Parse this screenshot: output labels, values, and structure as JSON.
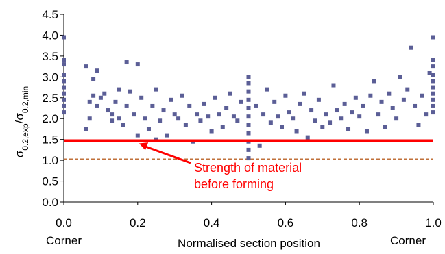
{
  "chart_data": {
    "type": "scatter",
    "xlabel": "Normalised section position",
    "ylabel": "σ0.2,exp/σ0.2,min",
    "ylabel_parts": {
      "sigma": "σ",
      "sub1": "0.2,exp",
      "slash": "/",
      "sub2": "0.2,min"
    },
    "xlim": [
      0.0,
      1.0
    ],
    "ylim": [
      0.0,
      4.5
    ],
    "xticks": [
      "0.0",
      "0.2",
      "0.4",
      "0.6",
      "0.8",
      "1.0"
    ],
    "yticks": [
      "0.0",
      "0.5",
      "1.0",
      "1.5",
      "2.0",
      "2.5",
      "3.0",
      "3.5",
      "4.0",
      "4.5"
    ],
    "corner_labels": {
      "left": "Corner",
      "right": "Corner"
    },
    "grid": false,
    "colors": {
      "points": "#5b5e96",
      "red_line": "#ff0000",
      "dashed_line": "#c0703a"
    },
    "reference_lines": [
      {
        "name": "red-solid",
        "y": 1.47,
        "style": "solid"
      },
      {
        "name": "dashed",
        "y": 1.03,
        "style": "dashed"
      }
    ],
    "annotation": {
      "line1": "Strength of material",
      "line2": "before forming",
      "arrow_to": {
        "x": 0.2,
        "y": 1.47
      }
    },
    "series": [
      {
        "values": [
          [
            0.0,
            2.15
          ],
          [
            0.0,
            2.3
          ],
          [
            0.0,
            2.45
          ],
          [
            0.0,
            2.6
          ],
          [
            0.0,
            2.75
          ],
          [
            0.0,
            2.9
          ],
          [
            0.0,
            3.05
          ],
          [
            0.0,
            3.3
          ],
          [
            0.0,
            3.4
          ],
          [
            0.0,
            3.95
          ],
          [
            0.06,
            3.25
          ],
          [
            0.07,
            2.4
          ],
          [
            0.07,
            2.0
          ],
          [
            0.06,
            1.75
          ],
          [
            0.08,
            2.95
          ],
          [
            0.08,
            2.55
          ],
          [
            0.09,
            3.15
          ],
          [
            0.09,
            2.3
          ],
          [
            0.1,
            2.5
          ],
          [
            0.11,
            2.6
          ],
          [
            0.12,
            2.2
          ],
          [
            0.13,
            1.95
          ],
          [
            0.13,
            2.1
          ],
          [
            0.14,
            2.4
          ],
          [
            0.15,
            2.7
          ],
          [
            0.15,
            2.0
          ],
          [
            0.16,
            1.85
          ],
          [
            0.17,
            3.35
          ],
          [
            0.17,
            2.3
          ],
          [
            0.18,
            2.65
          ],
          [
            0.19,
            2.1
          ],
          [
            0.2,
            3.3
          ],
          [
            0.2,
            1.6
          ],
          [
            0.21,
            2.5
          ],
          [
            0.22,
            2.0
          ],
          [
            0.23,
            1.75
          ],
          [
            0.24,
            2.3
          ],
          [
            0.25,
            1.5
          ],
          [
            0.25,
            2.7
          ],
          [
            0.26,
            1.95
          ],
          [
            0.27,
            2.2
          ],
          [
            0.28,
            1.6
          ],
          [
            0.29,
            2.45
          ],
          [
            0.3,
            2.1
          ],
          [
            0.31,
            2.0
          ],
          [
            0.32,
            2.55
          ],
          [
            0.33,
            1.85
          ],
          [
            0.34,
            2.3
          ],
          [
            0.35,
            1.45
          ],
          [
            0.36,
            2.1
          ],
          [
            0.37,
            1.95
          ],
          [
            0.38,
            2.35
          ],
          [
            0.39,
            2.05
          ],
          [
            0.4,
            1.7
          ],
          [
            0.41,
            2.5
          ],
          [
            0.42,
            2.1
          ],
          [
            0.43,
            1.8
          ],
          [
            0.44,
            2.25
          ],
          [
            0.45,
            2.6
          ],
          [
            0.46,
            2.05
          ],
          [
            0.47,
            1.95
          ],
          [
            0.48,
            2.4
          ],
          [
            0.5,
            1.05
          ],
          [
            0.5,
            1.25
          ],
          [
            0.5,
            1.45
          ],
          [
            0.5,
            1.65
          ],
          [
            0.5,
            1.85
          ],
          [
            0.5,
            2.05
          ],
          [
            0.5,
            2.25
          ],
          [
            0.5,
            2.45
          ],
          [
            0.5,
            2.65
          ],
          [
            0.5,
            2.85
          ],
          [
            0.5,
            3.0
          ],
          [
            0.52,
            2.3
          ],
          [
            0.53,
            1.35
          ],
          [
            0.54,
            2.1
          ],
          [
            0.55,
            2.7
          ],
          [
            0.56,
            1.9
          ],
          [
            0.57,
            2.4
          ],
          [
            0.58,
            2.05
          ],
          [
            0.59,
            1.8
          ],
          [
            0.6,
            2.55
          ],
          [
            0.61,
            2.15
          ],
          [
            0.62,
            2.0
          ],
          [
            0.63,
            1.7
          ],
          [
            0.64,
            2.35
          ],
          [
            0.65,
            2.6
          ],
          [
            0.66,
            1.55
          ],
          [
            0.67,
            2.2
          ],
          [
            0.68,
            1.95
          ],
          [
            0.69,
            2.45
          ],
          [
            0.7,
            1.8
          ],
          [
            0.71,
            2.1
          ],
          [
            0.72,
            1.9
          ],
          [
            0.73,
            2.8
          ],
          [
            0.74,
            2.2
          ],
          [
            0.75,
            2.0
          ],
          [
            0.76,
            2.35
          ],
          [
            0.77,
            1.75
          ],
          [
            0.78,
            2.15
          ],
          [
            0.79,
            2.5
          ],
          [
            0.8,
            2.05
          ],
          [
            0.81,
            2.3
          ],
          [
            0.82,
            1.7
          ],
          [
            0.83,
            2.55
          ],
          [
            0.84,
            2.9
          ],
          [
            0.85,
            2.1
          ],
          [
            0.86,
            2.4
          ],
          [
            0.87,
            1.8
          ],
          [
            0.88,
            2.6
          ],
          [
            0.89,
            2.25
          ],
          [
            0.9,
            2.0
          ],
          [
            0.91,
            3.0
          ],
          [
            0.92,
            2.45
          ],
          [
            0.93,
            2.7
          ],
          [
            0.94,
            3.7
          ],
          [
            0.95,
            2.3
          ],
          [
            0.96,
            1.85
          ],
          [
            0.97,
            2.55
          ],
          [
            0.98,
            2.1
          ],
          [
            0.99,
            3.1
          ],
          [
            1.0,
            2.15
          ],
          [
            1.0,
            2.3
          ],
          [
            1.0,
            2.45
          ],
          [
            1.0,
            2.6
          ],
          [
            1.0,
            2.75
          ],
          [
            1.0,
            2.9
          ],
          [
            1.0,
            3.05
          ],
          [
            1.0,
            3.25
          ],
          [
            1.0,
            3.4
          ],
          [
            1.0,
            3.95
          ]
        ]
      }
    ]
  }
}
